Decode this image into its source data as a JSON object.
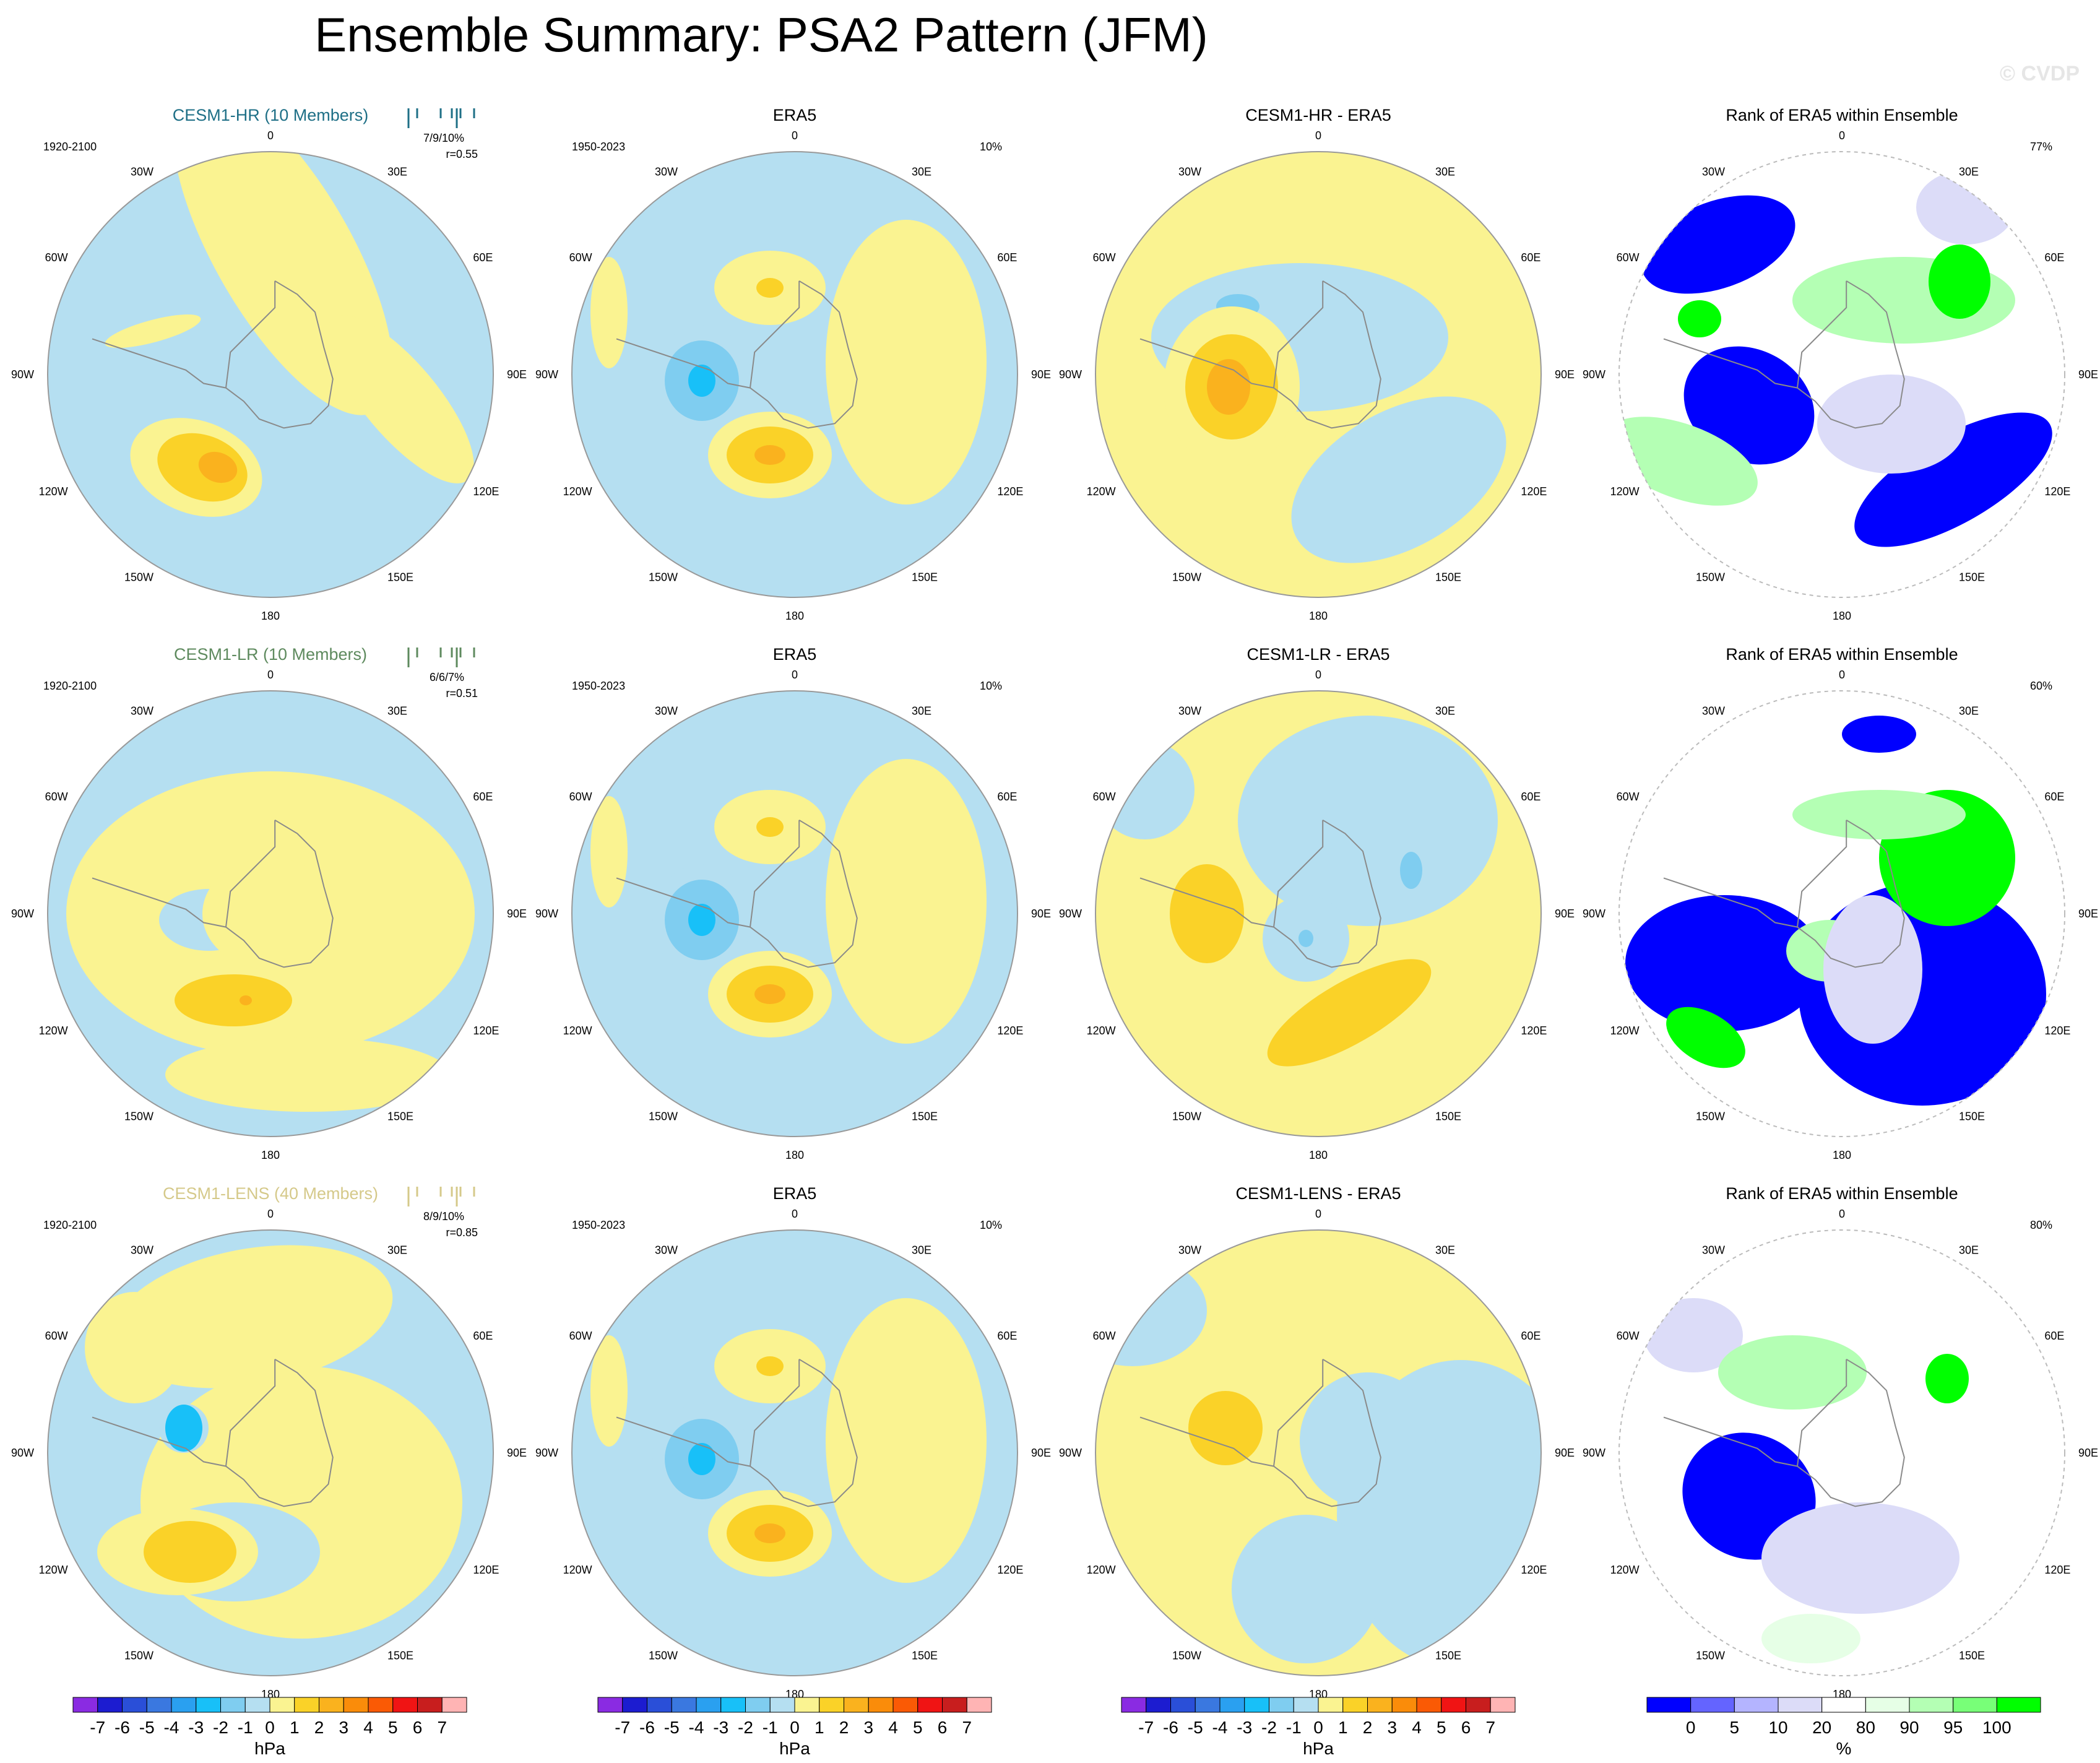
{
  "title": "Ensemble Summary: PSA2 Pattern (JFM)",
  "watermark": "© CVDP",
  "colors": {
    "pos_fill": "#faf391",
    "neg_fill": "#b5dff1",
    "coast": "#8a8a8a",
    "cesm1_hr": "#1e6f86",
    "cesm1_lr": "#5e8a5e",
    "cesm1_lens": "#d5c98a"
  },
  "longitude_labels": [
    "0",
    "30E",
    "60E",
    "90E",
    "120E",
    "150E",
    "180",
    "150W",
    "120W",
    "90W",
    "60W",
    "30W"
  ],
  "rows": [
    {
      "model": "CESM1-HR (10 Members)",
      "model_color_key": "cesm1_hr",
      "model_period": "1920-2100",
      "stats_rank": "7/9/10%",
      "stats_r": "r=0.55",
      "era5_title": "ERA5",
      "era5_period": "1950-2023",
      "era5_pct": "10%",
      "diff_title": "CESM1-HR - ERA5",
      "rank_title": "Rank of ERA5 within Ensemble",
      "rank_pct": "77%"
    },
    {
      "model": "CESM1-LR (10 Members)",
      "model_color_key": "cesm1_lr",
      "model_period": "1920-2100",
      "stats_rank": "6/6/7%",
      "stats_r": "r=0.51",
      "era5_title": "ERA5",
      "era5_period": "1950-2023",
      "era5_pct": "10%",
      "diff_title": "CESM1-LR - ERA5",
      "rank_title": "Rank of ERA5 within Ensemble",
      "rank_pct": "60%"
    },
    {
      "model": "CESM1-LENS (40 Members)",
      "model_color_key": "cesm1_lens",
      "model_period": "1920-2100",
      "stats_rank": "8/9/10%",
      "stats_r": "r=0.85",
      "era5_title": "ERA5",
      "era5_period": "1950-2023",
      "era5_pct": "10%",
      "diff_title": "CESM1-LENS - ERA5",
      "rank_title": "Rank of ERA5 within Ensemble",
      "rank_pct": "80%"
    }
  ],
  "colorbars": {
    "hpa": {
      "unit": "hPa",
      "ticks": [
        "-7",
        "-6",
        "-5",
        "-4",
        "-3",
        "-2",
        "-1",
        "0",
        "1",
        "2",
        "3",
        "4",
        "5",
        "6",
        "7"
      ],
      "colors": [
        "#8a2be2",
        "#1c1cd0",
        "#2a4fd8",
        "#3a78e0",
        "#2aa0f0",
        "#18c0f8",
        "#7fcdf0",
        "#b5dff1",
        "#faf391",
        "#fad228",
        "#fab21e",
        "#fa8c0a",
        "#fa5a05",
        "#f01414",
        "#c81e1e",
        "#ffb4b4"
      ]
    },
    "rank": {
      "unit": "%",
      "ticks": [
        "0",
        "5",
        "10",
        "20",
        "80",
        "90",
        "95",
        "100"
      ],
      "colors": [
        "#0000ff",
        "#6464ff",
        "#b4b4ff",
        "#dcdcf8",
        "#ffffff",
        "#e6ffe6",
        "#b4ffb4",
        "#78ff78",
        "#00ff00"
      ]
    }
  },
  "chart_data": [
    {
      "type": "heatmap",
      "title": "CESM1-HR (10 Members)",
      "projection": "south-polar stereographic",
      "units": "hPa",
      "features": [
        {
          "sign": "+",
          "lon": 200,
          "colat": 0.45,
          "peak": 3
        },
        {
          "sign": "+",
          "lon": 20,
          "colat": 0.65,
          "peak": 0.5
        }
      ]
    },
    {
      "type": "heatmap",
      "title": "ERA5",
      "units": "hPa",
      "features": [
        {
          "sign": "-",
          "lon": 270,
          "colat": 0.5,
          "peak": -4
        },
        {
          "sign": "+",
          "lon": 200,
          "colat": 0.4,
          "peak": 3
        },
        {
          "sign": "+",
          "lon": 330,
          "colat": 0.5,
          "peak": 2
        }
      ]
    },
    {
      "type": "heatmap",
      "title": "CESM1-HR - ERA5",
      "units": "hPa",
      "features": [
        {
          "sign": "+",
          "lon": 265,
          "colat": 0.5,
          "peak": 4
        },
        {
          "sign": "-",
          "lon": 320,
          "colat": 0.5,
          "peak": -2
        }
      ]
    },
    {
      "type": "heatmap",
      "title": "Rank of ERA5 within Ensemble",
      "units": "%",
      "summary": "77%"
    },
    {
      "type": "heatmap",
      "title": "CESM1-LR (10 Members)",
      "units": "hPa",
      "features": [
        {
          "sign": "+",
          "lon": 190,
          "colat": 0.5,
          "peak": 3
        },
        {
          "sign": "-",
          "lon": 280,
          "colat": 0.2,
          "peak": -2
        }
      ]
    },
    {
      "type": "heatmap",
      "title": "ERA5",
      "units": "hPa",
      "features": [
        {
          "sign": "-",
          "lon": 270,
          "colat": 0.5,
          "peak": -4
        },
        {
          "sign": "+",
          "lon": 200,
          "colat": 0.4,
          "peak": 3
        }
      ]
    },
    {
      "type": "heatmap",
      "title": "CESM1-LR - ERA5",
      "units": "hPa",
      "features": [
        {
          "sign": "+",
          "lon": 260,
          "colat": 0.55,
          "peak": 2
        },
        {
          "sign": "+",
          "lon": 160,
          "colat": 0.5,
          "peak": 2
        },
        {
          "sign": "-",
          "lon": 60,
          "colat": 0.45,
          "peak": -2
        }
      ]
    },
    {
      "type": "heatmap",
      "title": "Rank of ERA5 within Ensemble",
      "units": "%",
      "summary": "60%"
    },
    {
      "type": "heatmap",
      "title": "CESM1-LENS (40 Members)",
      "units": "hPa",
      "features": [
        {
          "sign": "+",
          "lon": 200,
          "colat": 0.45,
          "peak": 2
        },
        {
          "sign": "-",
          "lon": 280,
          "colat": 0.45,
          "peak": -2
        }
      ]
    },
    {
      "type": "heatmap",
      "title": "ERA5",
      "units": "hPa",
      "features": [
        {
          "sign": "-",
          "lon": 270,
          "colat": 0.5,
          "peak": -4
        },
        {
          "sign": "+",
          "lon": 200,
          "colat": 0.4,
          "peak": 3
        }
      ]
    },
    {
      "type": "heatmap",
      "title": "CESM1-LENS - ERA5",
      "units": "hPa",
      "features": [
        {
          "sign": "+",
          "lon": 265,
          "colat": 0.5,
          "peak": 2
        }
      ]
    },
    {
      "type": "heatmap",
      "title": "Rank of ERA5 within Ensemble",
      "units": "%",
      "summary": "80%"
    }
  ]
}
